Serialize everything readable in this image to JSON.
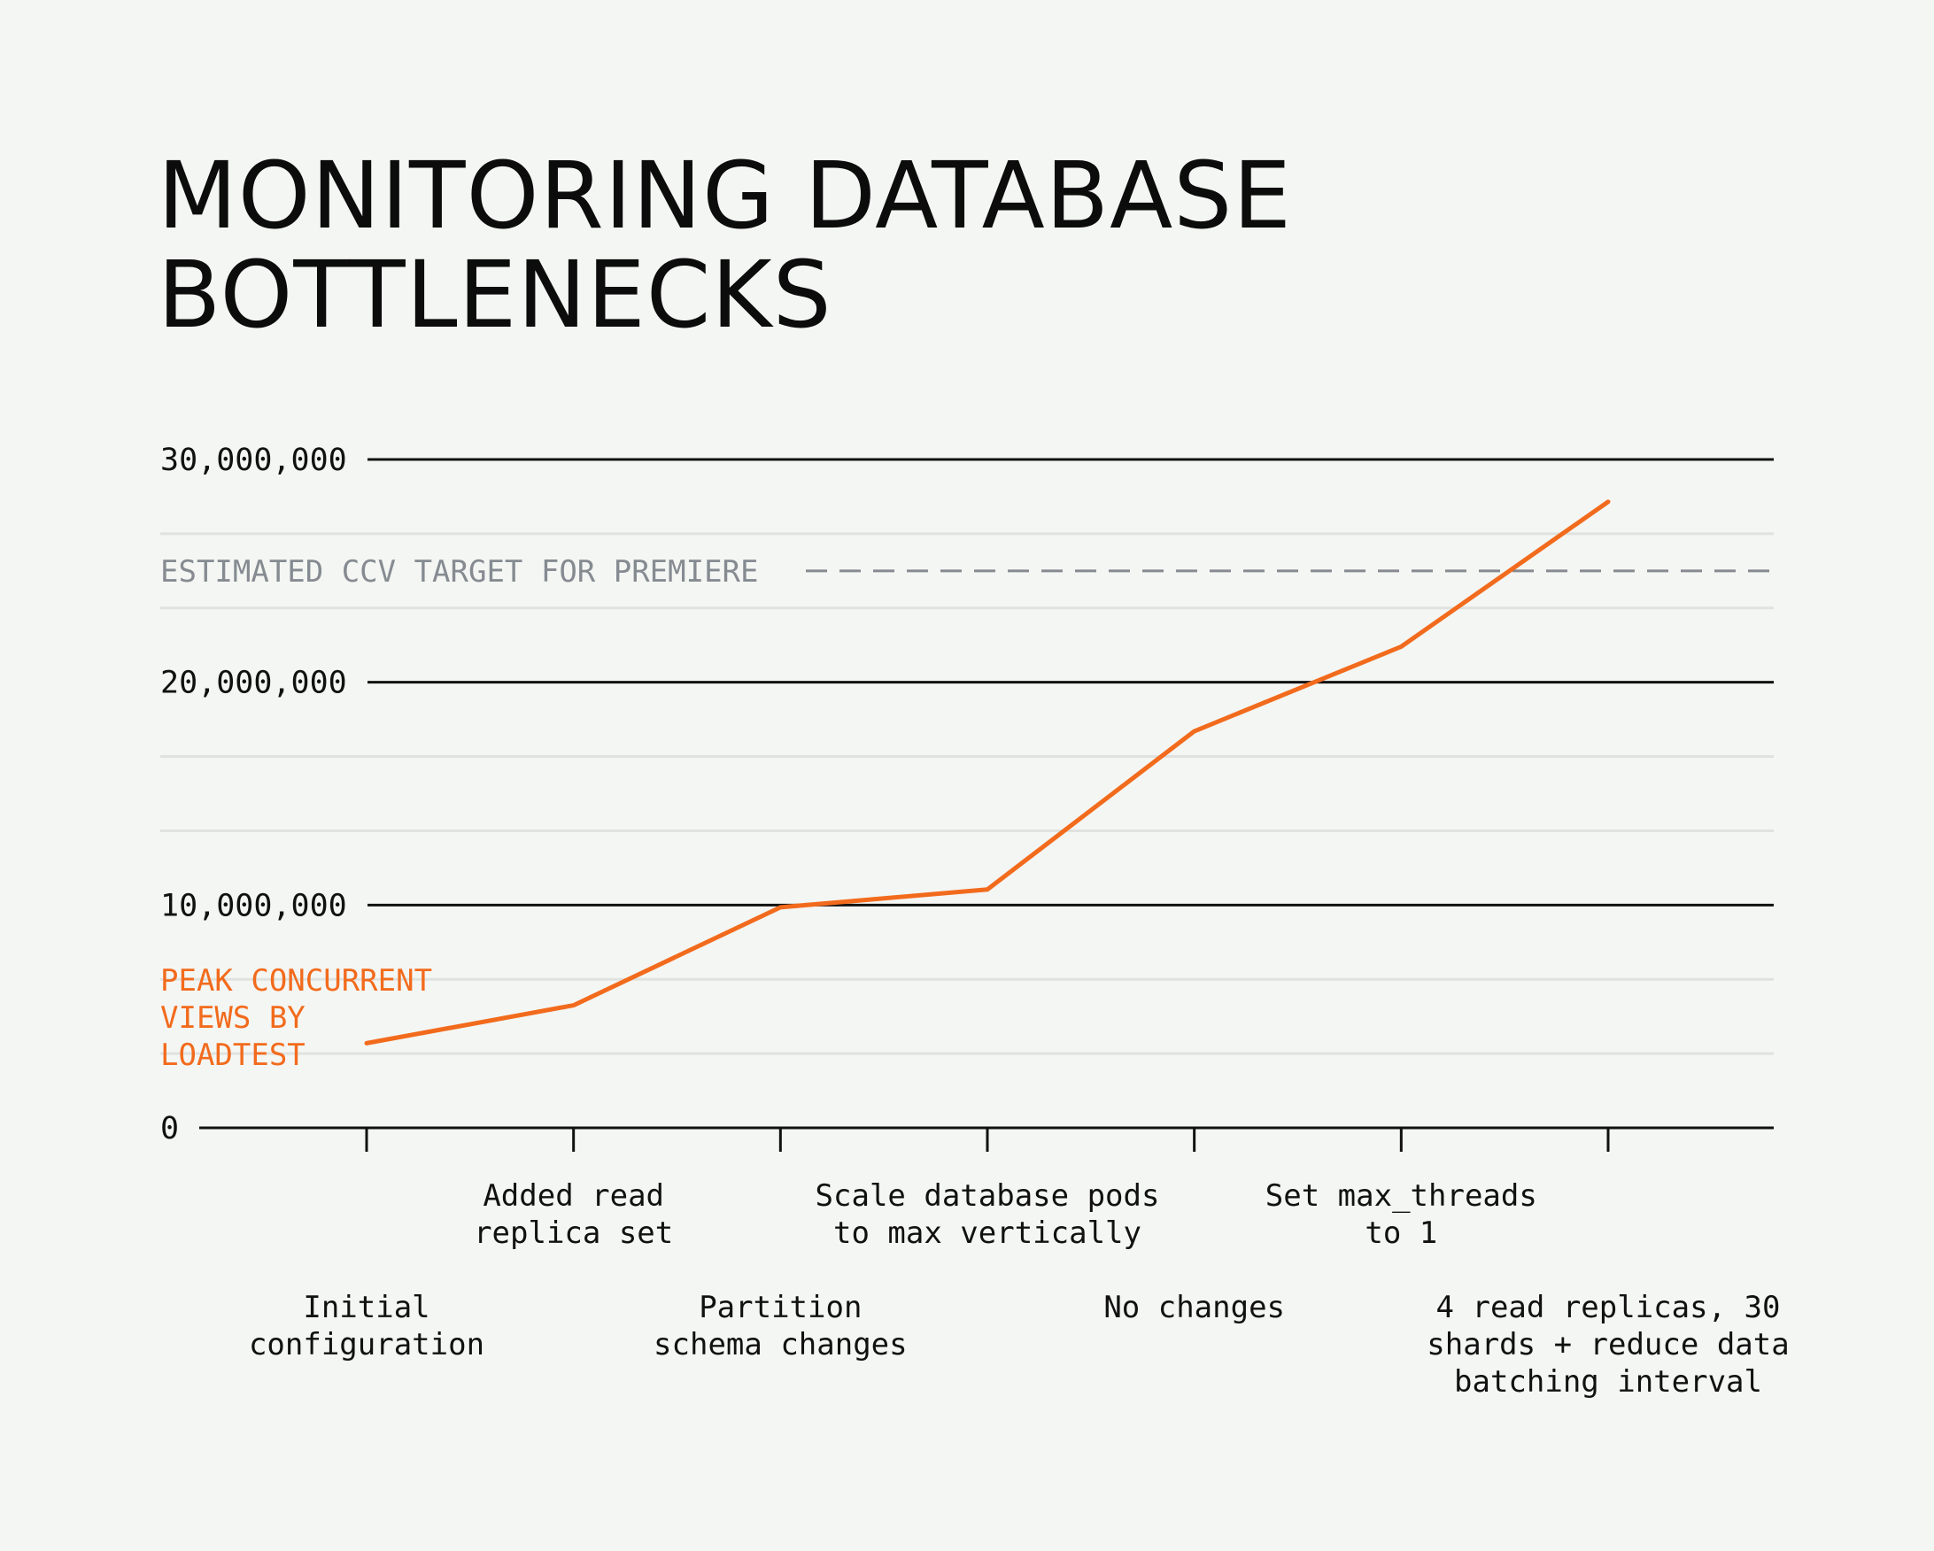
{
  "chart_data": {
    "type": "line",
    "title": "MONITORING DATABASE\nBOTTLENECKS",
    "xlabel": "",
    "ylabel": "",
    "ylim": [
      0,
      30000000
    ],
    "yticks": [
      {
        "value": 0,
        "label": "0"
      },
      {
        "value": 10000000,
        "label": "10,000,000"
      },
      {
        "value": 20000000,
        "label": "20,000,000"
      },
      {
        "value": 30000000,
        "label": "30,000,000"
      }
    ],
    "minor_gridlines": [
      3333333,
      6666667,
      13333333,
      16666667,
      23333333,
      26666667
    ],
    "categories": [
      "Initial configuration",
      "Added read replica set",
      "Partition schema changes",
      "Scale database pods to max vertically",
      "No changes",
      "Set max_threads to 1",
      "4 read replicas, 30 shards + reduce data batching interval"
    ],
    "category_label_lines": [
      [
        "Initial",
        "configuration"
      ],
      [
        "Added read",
        "replica set"
      ],
      [
        "Partition",
        "schema changes"
      ],
      [
        "Scale database pods",
        "to max vertically"
      ],
      [
        "No changes"
      ],
      [
        "Set max_threads",
        "to 1"
      ],
      [
        "4 read replicas, 30",
        "shards + reduce data",
        "batching interval"
      ]
    ],
    "series": [
      {
        "name": "PEAK CONCURRENT VIEWS BY LOADTEST",
        "name_lines": [
          "PEAK CONCURRENT",
          "VIEWS BY",
          "LOADTEST"
        ],
        "color": "#f26b1d",
        "values": [
          3800000,
          5500000,
          9900000,
          10700000,
          17800000,
          21600000,
          28100000
        ]
      }
    ],
    "reference_lines": [
      {
        "label": "ESTIMATED CCV TARGET FOR PREMIERE",
        "value": 25000000,
        "color": "#858b91",
        "style": "dashed"
      }
    ],
    "grid": true,
    "major_grid_color": "#111111",
    "minor_grid_color": "#dfe2df"
  }
}
